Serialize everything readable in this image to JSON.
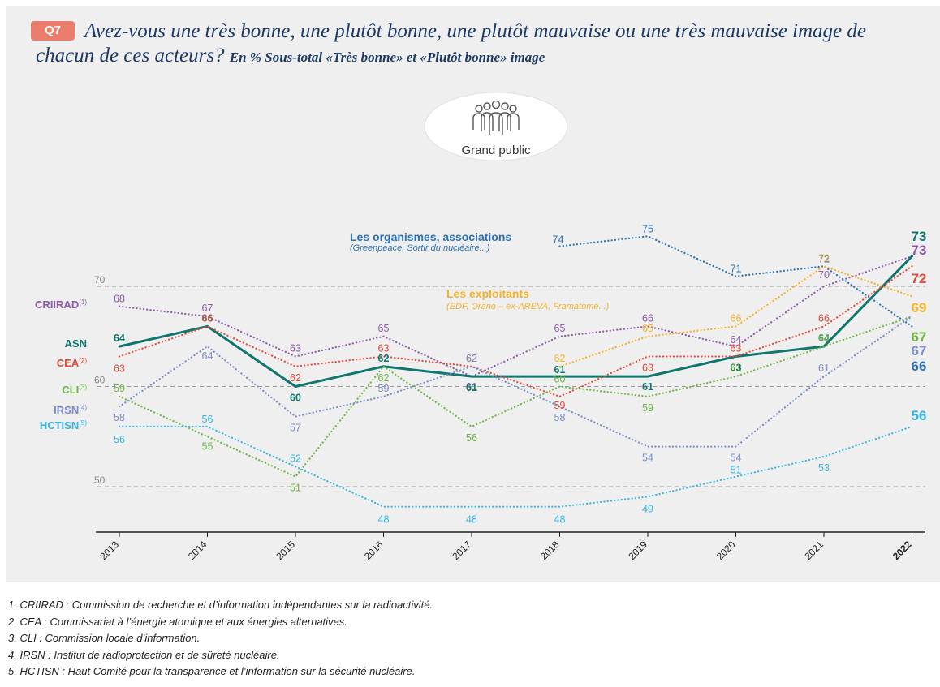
{
  "header": {
    "badge": "Q7",
    "question": "Avez-vous une très bonne, une plutôt bonne, une plutôt mauvaise ou une très mauvaise image de chacun de ces acteurs?",
    "subtitle": "En % Sous-total «Très bonne» et «Plutôt bonne» image"
  },
  "audience_label": "Grand public",
  "colors": {
    "panel": "#efefef",
    "badge": "#ea7d6c",
    "title": "#1d3a66",
    "grid": "#9a9a9a"
  },
  "annotations": {
    "organismes_title": "Les organismes, associations",
    "organismes_sub": "(Greenpeace, Sortir du nucléaire...)",
    "exploitants_title": "Les exploitants",
    "exploitants_sub": "(EDF, Orano – ex-AREVA, Framatome...)"
  },
  "chart_data": {
    "type": "line",
    "x": [
      "2013",
      "2014",
      "2015",
      "2016",
      "2017",
      "2018",
      "2019",
      "2020",
      "2021",
      "2022"
    ],
    "ylim": [
      45,
      77
    ],
    "y_ticks": [
      50,
      60,
      70
    ],
    "grid": "dashed at y ticks",
    "series": [
      {
        "name": "CRIIRAD",
        "sup": "(1)",
        "color": "#8c5aa8",
        "style": "dotted",
        "values": [
          68,
          67,
          63,
          65,
          61,
          65,
          66,
          64,
          70,
          73
        ]
      },
      {
        "name": "ASN",
        "sup": "",
        "color": "#0f766e",
        "style": "solid",
        "values": [
          64,
          66,
          60,
          62,
          61,
          61,
          61,
          63,
          64,
          73
        ]
      },
      {
        "name": "CEA",
        "sup": "(2)",
        "color": "#e5493a",
        "style": "dotted",
        "values": [
          63,
          66,
          62,
          63,
          62,
          59,
          63,
          63,
          66,
          72
        ]
      },
      {
        "name": "CLI",
        "sup": "(3)",
        "color": "#6db544",
        "style": "dotted",
        "values": [
          59,
          55,
          51,
          62,
          56,
          60,
          59,
          61,
          64,
          67
        ]
      },
      {
        "name": "IRSN",
        "sup": "(4)",
        "color": "#7b8cc8",
        "style": "dotted",
        "values": [
          58,
          64,
          57,
          59,
          62,
          58,
          54,
          54,
          61,
          67
        ]
      },
      {
        "name": "HCTISN",
        "sup": "(5)",
        "color": "#35b5e0",
        "style": "dotted",
        "values": [
          56,
          56,
          52,
          48,
          48,
          48,
          49,
          51,
          53,
          56
        ]
      },
      {
        "name": "Les organismes, associations",
        "sup": "",
        "color": "#2a72b5",
        "style": "dotted",
        "values": [
          null,
          null,
          null,
          null,
          null,
          74,
          75,
          71,
          72,
          66
        ]
      },
      {
        "name": "Les exploitants",
        "sup": "",
        "color": "#f4b129",
        "style": "dotted",
        "values": [
          null,
          null,
          null,
          null,
          null,
          62,
          65,
          66,
          72,
          69
        ]
      }
    ]
  },
  "footnotes": [
    "1. CRIIRAD : Commission de recherche et d’information indépendantes sur la radioactivité.",
    "2. CEA : Commissariat à l’énergie atomique et aux énergies alternatives.",
    "3. CLI : Commission locale d’information.",
    "4. IRSN : Institut de radioprotection et de sûreté nucléaire.",
    "5. HCTISN : Haut Comité pour la transparence et l’information sur la sécurité nucléaire."
  ]
}
